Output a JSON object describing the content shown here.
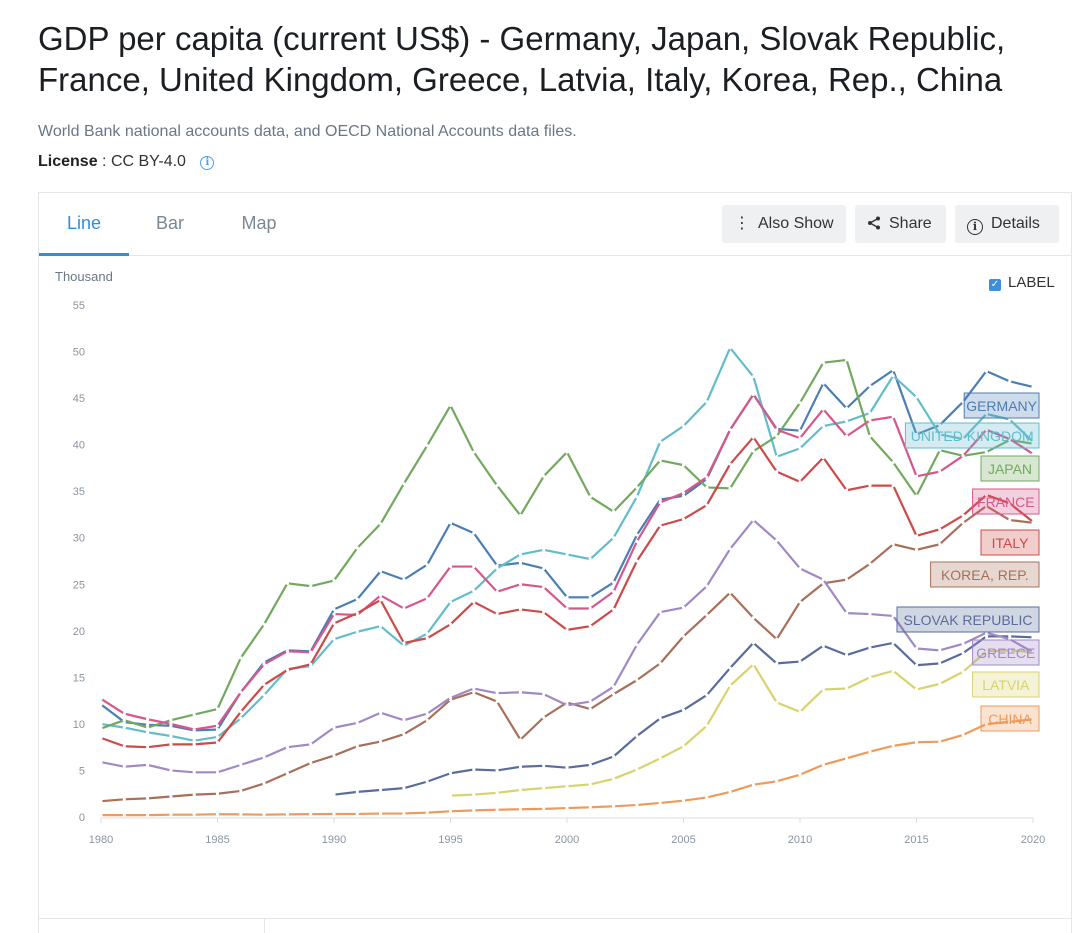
{
  "header": {
    "title": "GDP per capita (current US$) - Germany, Japan, Slovak Republic, France, United Kingdom, Greece, Latvia, Italy, Korea, Rep., China",
    "source": "World Bank national accounts data, and OECD National Accounts data files.",
    "license_label": "License",
    "license_sep": " : ",
    "license_value": "CC BY-4.0"
  },
  "tabs": {
    "line": "Line",
    "bar": "Bar",
    "map": "Map"
  },
  "toolbar": {
    "also_show": "Also Show",
    "share": "Share",
    "details": "Details"
  },
  "controls": {
    "label_toggle": "LABEL",
    "label_checked": true
  },
  "chart_data": {
    "type": "line",
    "ylabel": "Thousand",
    "ylim": [
      0,
      55
    ],
    "yticks": [
      0,
      5,
      10,
      15,
      20,
      25,
      30,
      35,
      40,
      45,
      50,
      55
    ],
    "xlim": [
      1980,
      2020
    ],
    "xticks": [
      1980,
      1985,
      1990,
      1995,
      2000,
      2005,
      2010,
      2015,
      2020
    ],
    "grid": false,
    "legend": "right-edge inline labels",
    "series": [
      {
        "name": "GERMANY",
        "color": "#4a7eb5",
        "start": 1980,
        "values": [
          12.1,
          10.2,
          9.9,
          9.8,
          9.3,
          9.4,
          13.4,
          16.6,
          17.9,
          17.8,
          22.3,
          23.4,
          26.4,
          25.5,
          27.1,
          31.6,
          30.5,
          27.0,
          27.3,
          26.7,
          23.6,
          23.6,
          25.2,
          30.3,
          34.1,
          34.5,
          36.3,
          41.6,
          45.4,
          41.7,
          41.5,
          46.6,
          43.9,
          46.3,
          48.0,
          41.1,
          42.1,
          44.6,
          47.9,
          46.8,
          46.2
        ]
      },
      {
        "name": "UNITED KINGDOM",
        "color": "#63bccb",
        "start": 1980,
        "values": [
          10.0,
          9.6,
          9.1,
          8.7,
          8.2,
          8.6,
          10.6,
          13.1,
          15.9,
          16.2,
          19.1,
          19.9,
          20.5,
          18.4,
          19.7,
          23.1,
          24.3,
          26.7,
          28.2,
          28.7,
          28.2,
          27.7,
          30.0,
          34.4,
          40.3,
          42.0,
          44.6,
          50.4,
          47.3,
          38.7,
          39.6,
          42.0,
          42.5,
          43.4,
          47.4,
          45.1,
          41.1,
          40.6,
          43.3,
          42.7,
          40.3
        ]
      },
      {
        "name": "JAPAN",
        "color": "#72a95f",
        "start": 1980,
        "values": [
          9.5,
          10.4,
          9.6,
          10.4,
          11.0,
          11.6,
          17.1,
          20.7,
          25.1,
          24.8,
          25.4,
          28.9,
          31.5,
          35.8,
          39.9,
          44.2,
          39.2,
          35.6,
          32.4,
          36.6,
          39.2,
          34.4,
          32.8,
          35.4,
          38.3,
          37.8,
          35.4,
          35.3,
          39.3,
          40.9,
          44.5,
          48.8,
          49.1,
          40.9,
          38.1,
          34.5,
          39.4,
          38.8,
          39.2,
          40.5,
          40.1
        ]
      },
      {
        "name": "FRANCE",
        "color": "#d6578a",
        "start": 1980,
        "values": [
          12.7,
          11.1,
          10.5,
          10.0,
          9.4,
          9.8,
          13.4,
          16.4,
          17.8,
          17.7,
          21.8,
          21.7,
          23.8,
          22.4,
          23.5,
          26.9,
          26.9,
          24.2,
          25.0,
          24.7,
          22.4,
          22.4,
          24.2,
          29.6,
          33.8,
          34.8,
          36.5,
          41.6,
          45.4,
          41.6,
          40.7,
          43.8,
          40.9,
          42.6,
          43.0,
          36.6,
          37.1,
          38.8,
          41.6,
          40.6,
          39.0
        ]
      },
      {
        "name": "ITALY",
        "color": "#cc4a47",
        "start": 1980,
        "values": [
          8.5,
          7.6,
          7.5,
          7.8,
          7.8,
          8.0,
          11.3,
          14.2,
          15.8,
          16.4,
          20.8,
          21.9,
          23.3,
          18.7,
          19.2,
          20.7,
          23.1,
          21.8,
          22.3,
          22.0,
          20.1,
          20.5,
          22.3,
          27.5,
          31.3,
          32.0,
          33.5,
          37.9,
          40.8,
          37.1,
          36.0,
          38.6,
          35.1,
          35.6,
          35.6,
          30.2,
          30.9,
          32.4,
          34.6,
          33.7,
          31.7
        ]
      },
      {
        "name": "KOREA, REP.",
        "color": "#a8705a",
        "start": 1980,
        "values": [
          1.7,
          1.9,
          2.0,
          2.2,
          2.4,
          2.5,
          2.8,
          3.6,
          4.7,
          5.8,
          6.6,
          7.6,
          8.1,
          8.9,
          10.4,
          12.6,
          13.4,
          12.4,
          8.3,
          10.7,
          12.3,
          11.6,
          13.2,
          14.7,
          16.5,
          19.4,
          21.7,
          24.1,
          21.4,
          19.1,
          23.1,
          25.1,
          25.5,
          27.2,
          29.3,
          28.7,
          29.3,
          31.6,
          33.4,
          31.9,
          31.6
        ]
      },
      {
        "name": "SLOVAK REPUBLIC",
        "color": "#5a6c9c",
        "start": 1990,
        "values": [
          2.4,
          2.7,
          2.9,
          3.1,
          3.8,
          4.7,
          5.1,
          5.0,
          5.4,
          5.5,
          5.3,
          5.6,
          6.5,
          8.7,
          10.6,
          11.5,
          13.1,
          16.0,
          18.7,
          16.5,
          16.7,
          18.4,
          17.4,
          18.2,
          18.7,
          16.3,
          16.5,
          17.6,
          19.4,
          19.4,
          19.3
        ]
      },
      {
        "name": "GREECE",
        "color": "#a089c4",
        "start": 1980,
        "values": [
          5.9,
          5.4,
          5.6,
          5.0,
          4.8,
          4.8,
          5.6,
          6.4,
          7.5,
          7.8,
          9.6,
          10.1,
          11.2,
          10.4,
          11.1,
          12.8,
          13.8,
          13.3,
          13.4,
          13.2,
          12.0,
          12.4,
          14.0,
          18.5,
          22.0,
          22.5,
          24.8,
          28.8,
          31.9,
          29.7,
          26.7,
          25.5,
          21.9,
          21.8,
          21.6,
          18.1,
          17.9,
          18.6,
          19.8,
          19.1,
          17.7
        ]
      },
      {
        "name": "LATVIA",
        "color": "#d7d36e",
        "start": 1995,
        "values": [
          2.3,
          2.4,
          2.6,
          2.9,
          3.1,
          3.3,
          3.5,
          4.1,
          5.1,
          6.3,
          7.6,
          9.8,
          14.1,
          16.4,
          12.3,
          11.3,
          13.7,
          13.8,
          15.0,
          15.7,
          13.7,
          14.3,
          15.6,
          17.8,
          17.9,
          17.7
        ]
      },
      {
        "name": "CHINA",
        "color": "#ee9a5a",
        "start": 1980,
        "values": [
          0.2,
          0.2,
          0.2,
          0.25,
          0.25,
          0.3,
          0.28,
          0.25,
          0.28,
          0.31,
          0.32,
          0.33,
          0.37,
          0.38,
          0.47,
          0.61,
          0.71,
          0.78,
          0.83,
          0.87,
          0.96,
          1.05,
          1.15,
          1.29,
          1.51,
          1.75,
          2.1,
          2.69,
          3.47,
          3.83,
          4.55,
          5.61,
          6.3,
          7.02,
          7.64,
          8.03,
          8.09,
          8.82,
          9.98,
          10.22,
          10.5
        ]
      }
    ]
  }
}
